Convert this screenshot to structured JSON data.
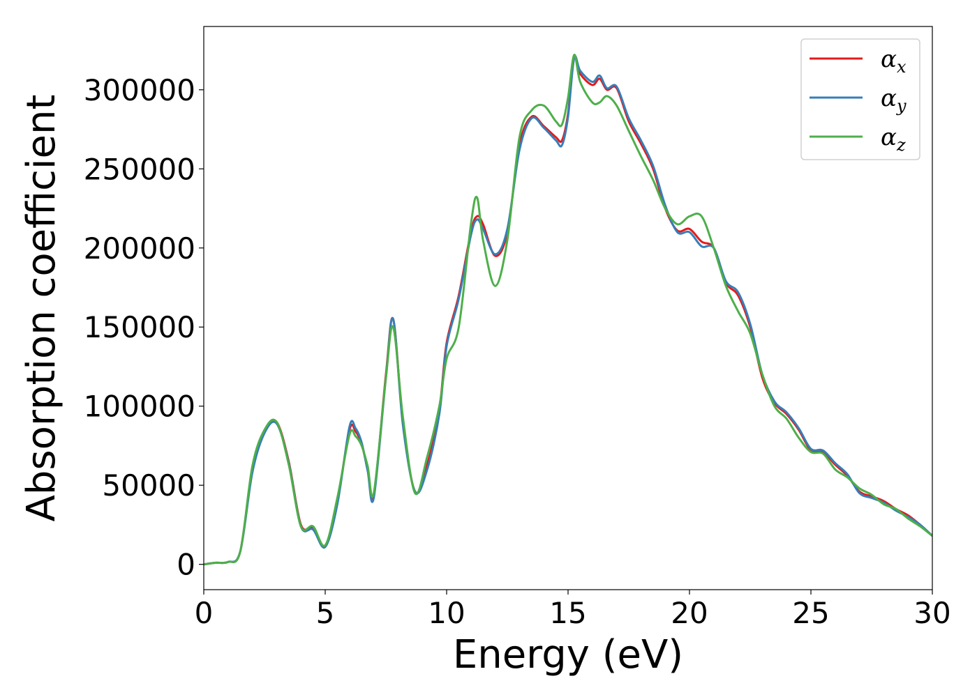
{
  "chart_data": {
    "type": "line",
    "xlabel": "Energy (eV)",
    "ylabel": "Absorption coefficient",
    "xlim": [
      0,
      30
    ],
    "ylim": [
      -16000,
      340000
    ],
    "xticks": [
      0,
      5,
      10,
      15,
      20,
      25,
      30
    ],
    "yticks": [
      0,
      50000,
      100000,
      150000,
      200000,
      250000,
      300000
    ],
    "grid": false,
    "legend_position": "top-right",
    "x": [
      0,
      0.5,
      1,
      1.5,
      2,
      2.5,
      3,
      3.5,
      4,
      4.5,
      5,
      5.5,
      6,
      6.25,
      6.5,
      6.75,
      7,
      7.5,
      7.8,
      8.2,
      8.7,
      9.2,
      9.7,
      10,
      10.5,
      11,
      11.25,
      11.5,
      12,
      12.5,
      13,
      13.5,
      14,
      14.5,
      14.75,
      15,
      15.25,
      15.5,
      16,
      16.3,
      16.6,
      17,
      17.5,
      18,
      18.5,
      19,
      19.5,
      20,
      20.5,
      21,
      21.5,
      22,
      22.5,
      23,
      23.5,
      24,
      24.5,
      25,
      25.5,
      26,
      26.5,
      27,
      27.5,
      28,
      28.5,
      29,
      29.5,
      30
    ],
    "series": [
      {
        "name": "α_x",
        "color": "#e41a1c",
        "values": [
          0,
          1000,
          1500,
          8000,
          60000,
          84000,
          90000,
          65000,
          25000,
          23000,
          12000,
          40000,
          85000,
          84000,
          76000,
          60000,
          43000,
          120000,
          155000,
          90000,
          46000,
          63000,
          98000,
          140000,
          170000,
          210000,
          220000,
          215000,
          195000,
          210000,
          265000,
          283000,
          277000,
          270000,
          268000,
          285000,
          320000,
          310000,
          303000,
          307000,
          300000,
          301000,
          280000,
          266000,
          250000,
          225000,
          211000,
          212000,
          204000,
          200000,
          178000,
          170000,
          150000,
          118000,
          102000,
          95000,
          85000,
          72000,
          71000,
          63000,
          56000,
          46000,
          43000,
          40000,
          35000,
          31000,
          25000,
          18000
        ]
      },
      {
        "name": "α_y",
        "color": "#377eb8",
        "values": [
          0,
          1000,
          1500,
          8000,
          58000,
          83000,
          89000,
          64000,
          24000,
          22000,
          11000,
          38000,
          87000,
          86000,
          77000,
          59000,
          42000,
          118000,
          155000,
          88000,
          46000,
          60000,
          95000,
          138000,
          168000,
          208000,
          218000,
          212000,
          196000,
          212000,
          262000,
          282000,
          276000,
          268000,
          265000,
          283000,
          320000,
          312000,
          305000,
          309000,
          301000,
          302000,
          282000,
          268000,
          252000,
          227000,
          210000,
          210000,
          201000,
          200000,
          179000,
          172000,
          152000,
          120000,
          103000,
          96000,
          86000,
          73000,
          72000,
          64000,
          57000,
          45000,
          42000,
          39000,
          34000,
          30000,
          25000,
          18000
        ]
      },
      {
        "name": "α_z",
        "color": "#4daf4a",
        "values": [
          0,
          1000,
          1500,
          8000,
          62000,
          85000,
          90000,
          63000,
          24000,
          24000,
          12000,
          42000,
          82000,
          81000,
          75000,
          62000,
          45000,
          118000,
          150000,
          93000,
          45000,
          68000,
          100000,
          130000,
          150000,
          215000,
          232000,
          205000,
          176000,
          205000,
          270000,
          287000,
          290000,
          280000,
          278000,
          295000,
          322000,
          305000,
          292000,
          292000,
          296000,
          290000,
          274000,
          258000,
          243000,
          225000,
          215000,
          220000,
          220000,
          200000,
          176000,
          160000,
          146000,
          120000,
          100000,
          92000,
          80000,
          71000,
          70000,
          60000,
          55000,
          48000,
          44000,
          38000,
          35000,
          29000,
          24000,
          18000
        ]
      }
    ]
  },
  "legend": {
    "items": [
      {
        "base": "α",
        "sub": "x"
      },
      {
        "base": "α",
        "sub": "y"
      },
      {
        "base": "α",
        "sub": "z"
      }
    ]
  }
}
